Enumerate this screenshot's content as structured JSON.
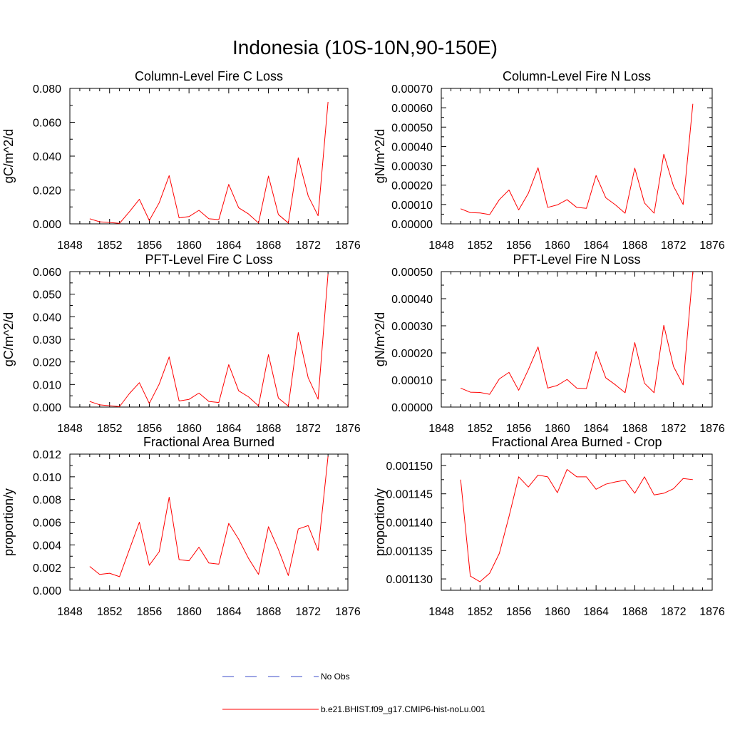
{
  "title": "Indonesia (10S-10N,90-150E)",
  "legend": {
    "placement": "bottom-center",
    "entries": [
      {
        "label": "No Obs",
        "color": "#3b4bc8",
        "style": "dashed"
      },
      {
        "label": "b.e21.BHIST.f09_g17.CMIP6-hist-noLu.001",
        "color": "#ff0000",
        "style": "solid"
      }
    ]
  },
  "chart_data": [
    {
      "type": "line",
      "title": "Column-Level Fire C Loss",
      "ylabel": "gC/m^2/d",
      "xlim": [
        1848,
        1876
      ],
      "ylim": [
        0,
        0.08
      ],
      "xticks": [
        1848,
        1852,
        1856,
        1860,
        1864,
        1868,
        1872,
        1876
      ],
      "yticks": [
        "0.000",
        "0.020",
        "0.040",
        "0.060",
        "0.080"
      ],
      "x": [
        1850,
        1851,
        1852,
        1853,
        1854,
        1855,
        1856,
        1857,
        1858,
        1859,
        1860,
        1861,
        1862,
        1863,
        1864,
        1865,
        1866,
        1867,
        1868,
        1869,
        1870,
        1871,
        1872,
        1873,
        1874
      ],
      "series": [
        {
          "name": "b.e21.BHIST.f09_g17.CMIP6-hist-noLu.001",
          "color": "#ff0000",
          "values": [
            0.003,
            0.0012,
            0.0008,
            0.0003,
            0.0072,
            0.0145,
            0.002,
            0.0125,
            0.0285,
            0.0035,
            0.0043,
            0.008,
            0.003,
            0.0025,
            0.0233,
            0.0095,
            0.0058,
            0.0005,
            0.0282,
            0.0055,
            0.0005,
            0.039,
            0.0165,
            0.0048,
            0.072
          ]
        }
      ]
    },
    {
      "type": "line",
      "title": "Column-Level Fire N Loss",
      "ylabel": "gN/m^2/d",
      "xlim": [
        1848,
        1876
      ],
      "ylim": [
        0,
        0.0007
      ],
      "xticks": [
        1848,
        1852,
        1856,
        1860,
        1864,
        1868,
        1872,
        1876
      ],
      "yticks": [
        "0.00000",
        "0.00010",
        "0.00020",
        "0.00030",
        "0.00040",
        "0.00050",
        "0.00060",
        "0.00070"
      ],
      "x": [
        1850,
        1851,
        1852,
        1853,
        1854,
        1855,
        1856,
        1857,
        1858,
        1859,
        1860,
        1861,
        1862,
        1863,
        1864,
        1865,
        1866,
        1867,
        1868,
        1869,
        1870,
        1871,
        1872,
        1873,
        1874
      ],
      "series": [
        {
          "name": "b.e21.BHIST.f09_g17.CMIP6-hist-noLu.001",
          "color": "#ff0000",
          "values": [
            7.8e-05,
            5.8e-05,
            5.6e-05,
            4.8e-05,
            0.000125,
            0.000175,
            7.2e-05,
            0.000158,
            0.00029,
            8.5e-05,
            9.8e-05,
            0.000125,
            8.5e-05,
            8e-05,
            0.00025,
            0.000135,
            9.8e-05,
            5.5e-05,
            0.000288,
            0.000108,
            5.5e-05,
            0.00036,
            0.000195,
            0.0001,
            0.00062
          ]
        }
      ]
    },
    {
      "type": "line",
      "title": "PFT-Level Fire C Loss",
      "ylabel": "gC/m^2/d",
      "xlim": [
        1848,
        1876
      ],
      "ylim": [
        0,
        0.06
      ],
      "xticks": [
        1848,
        1852,
        1856,
        1860,
        1864,
        1868,
        1872,
        1876
      ],
      "yticks": [
        "0.000",
        "0.010",
        "0.020",
        "0.030",
        "0.040",
        "0.050",
        "0.060"
      ],
      "x": [
        1850,
        1851,
        1852,
        1853,
        1854,
        1855,
        1856,
        1857,
        1858,
        1859,
        1860,
        1861,
        1862,
        1863,
        1864,
        1865,
        1866,
        1867,
        1868,
        1869,
        1870,
        1871,
        1872,
        1873,
        1874
      ],
      "series": [
        {
          "name": "b.e21.BHIST.f09_g17.CMIP6-hist-noLu.001",
          "color": "#ff0000",
          "values": [
            0.0025,
            0.001,
            0.0006,
            0.0002,
            0.006,
            0.0108,
            0.0016,
            0.0102,
            0.0222,
            0.0027,
            0.0034,
            0.0062,
            0.0025,
            0.002,
            0.0188,
            0.0072,
            0.0045,
            0.0005,
            0.0232,
            0.004,
            0.0004,
            0.033,
            0.013,
            0.0035,
            0.059
          ]
        }
      ]
    },
    {
      "type": "line",
      "title": "PFT-Level Fire N Loss",
      "ylabel": "gN/m^2/d",
      "xlim": [
        1848,
        1876
      ],
      "ylim": [
        0,
        0.0005
      ],
      "xticks": [
        1848,
        1852,
        1856,
        1860,
        1864,
        1868,
        1872,
        1876
      ],
      "yticks": [
        "0.00000",
        "0.00010",
        "0.00020",
        "0.00030",
        "0.00040",
        "0.00050"
      ],
      "x": [
        1850,
        1851,
        1852,
        1853,
        1854,
        1855,
        1856,
        1857,
        1858,
        1859,
        1860,
        1861,
        1862,
        1863,
        1864,
        1865,
        1866,
        1867,
        1868,
        1869,
        1870,
        1871,
        1872,
        1873,
        1874
      ],
      "series": [
        {
          "name": "b.e21.BHIST.f09_g17.CMIP6-hist-noLu.001",
          "color": "#ff0000",
          "values": [
            7e-05,
            5.5e-05,
            5.4e-05,
            4.7e-05,
            0.000104,
            0.000128,
            6.2e-05,
            0.000138,
            0.000222,
            7e-05,
            8e-05,
            0.000102,
            7e-05,
            6.8e-05,
            0.000205,
            0.000108,
            8.2e-05,
            5.3e-05,
            0.000238,
            8.8e-05,
            5.3e-05,
            0.000302,
            0.00015,
            8.2e-05,
            0.0005
          ]
        }
      ]
    },
    {
      "type": "line",
      "title": "Fractional Area Burned",
      "ylabel": "proportion/y",
      "xlim": [
        1848,
        1876
      ],
      "ylim": [
        0,
        0.012
      ],
      "xticks": [
        1848,
        1852,
        1856,
        1860,
        1864,
        1868,
        1872,
        1876
      ],
      "yticks": [
        "0.000",
        "0.002",
        "0.004",
        "0.006",
        "0.008",
        "0.010",
        "0.012"
      ],
      "x": [
        1850,
        1851,
        1852,
        1853,
        1854,
        1855,
        1856,
        1857,
        1858,
        1859,
        1860,
        1861,
        1862,
        1863,
        1864,
        1865,
        1866,
        1867,
        1868,
        1869,
        1870,
        1871,
        1872,
        1873,
        1874
      ],
      "series": [
        {
          "name": "b.e21.BHIST.f09_g17.CMIP6-hist-noLu.001",
          "color": "#ff0000",
          "values": [
            0.0021,
            0.0014,
            0.0015,
            0.0012,
            0.0036,
            0.006,
            0.0022,
            0.0034,
            0.0082,
            0.0027,
            0.0026,
            0.0038,
            0.0024,
            0.0023,
            0.0059,
            0.0045,
            0.0028,
            0.0014,
            0.0056,
            0.0036,
            0.0013,
            0.0054,
            0.0057,
            0.0035,
            0.0118
          ]
        }
      ]
    },
    {
      "type": "line",
      "title": "Fractional Area Burned - Crop",
      "ylabel": "proportion/y",
      "xlim": [
        1848,
        1876
      ],
      "ylim": [
        0.001128,
        0.001152
      ],
      "xticks": [
        1848,
        1852,
        1856,
        1860,
        1864,
        1868,
        1872,
        1876
      ],
      "yticks": [
        "0.001130",
        "0.001135",
        "0.001140",
        "0.001145",
        "0.001150"
      ],
      "x": [
        1850,
        1851,
        1852,
        1853,
        1854,
        1855,
        1856,
        1857,
        1858,
        1859,
        1860,
        1861,
        1862,
        1863,
        1864,
        1865,
        1866,
        1867,
        1868,
        1869,
        1870,
        1871,
        1872,
        1873,
        1874
      ],
      "series": [
        {
          "name": "b.e21.BHIST.f09_g17.CMIP6-hist-noLu.001",
          "color": "#ff0000",
          "values": [
            0.0011475,
            0.0011305,
            0.0011295,
            0.001131,
            0.0011345,
            0.001141,
            0.001148,
            0.0011462,
            0.0011483,
            0.001148,
            0.0011452,
            0.0011493,
            0.001148,
            0.001148,
            0.0011458,
            0.0011467,
            0.0011471,
            0.0011474,
            0.0011451,
            0.001148,
            0.0011448,
            0.0011451,
            0.0011459,
            0.0011477,
            0.0011475
          ]
        }
      ]
    }
  ]
}
